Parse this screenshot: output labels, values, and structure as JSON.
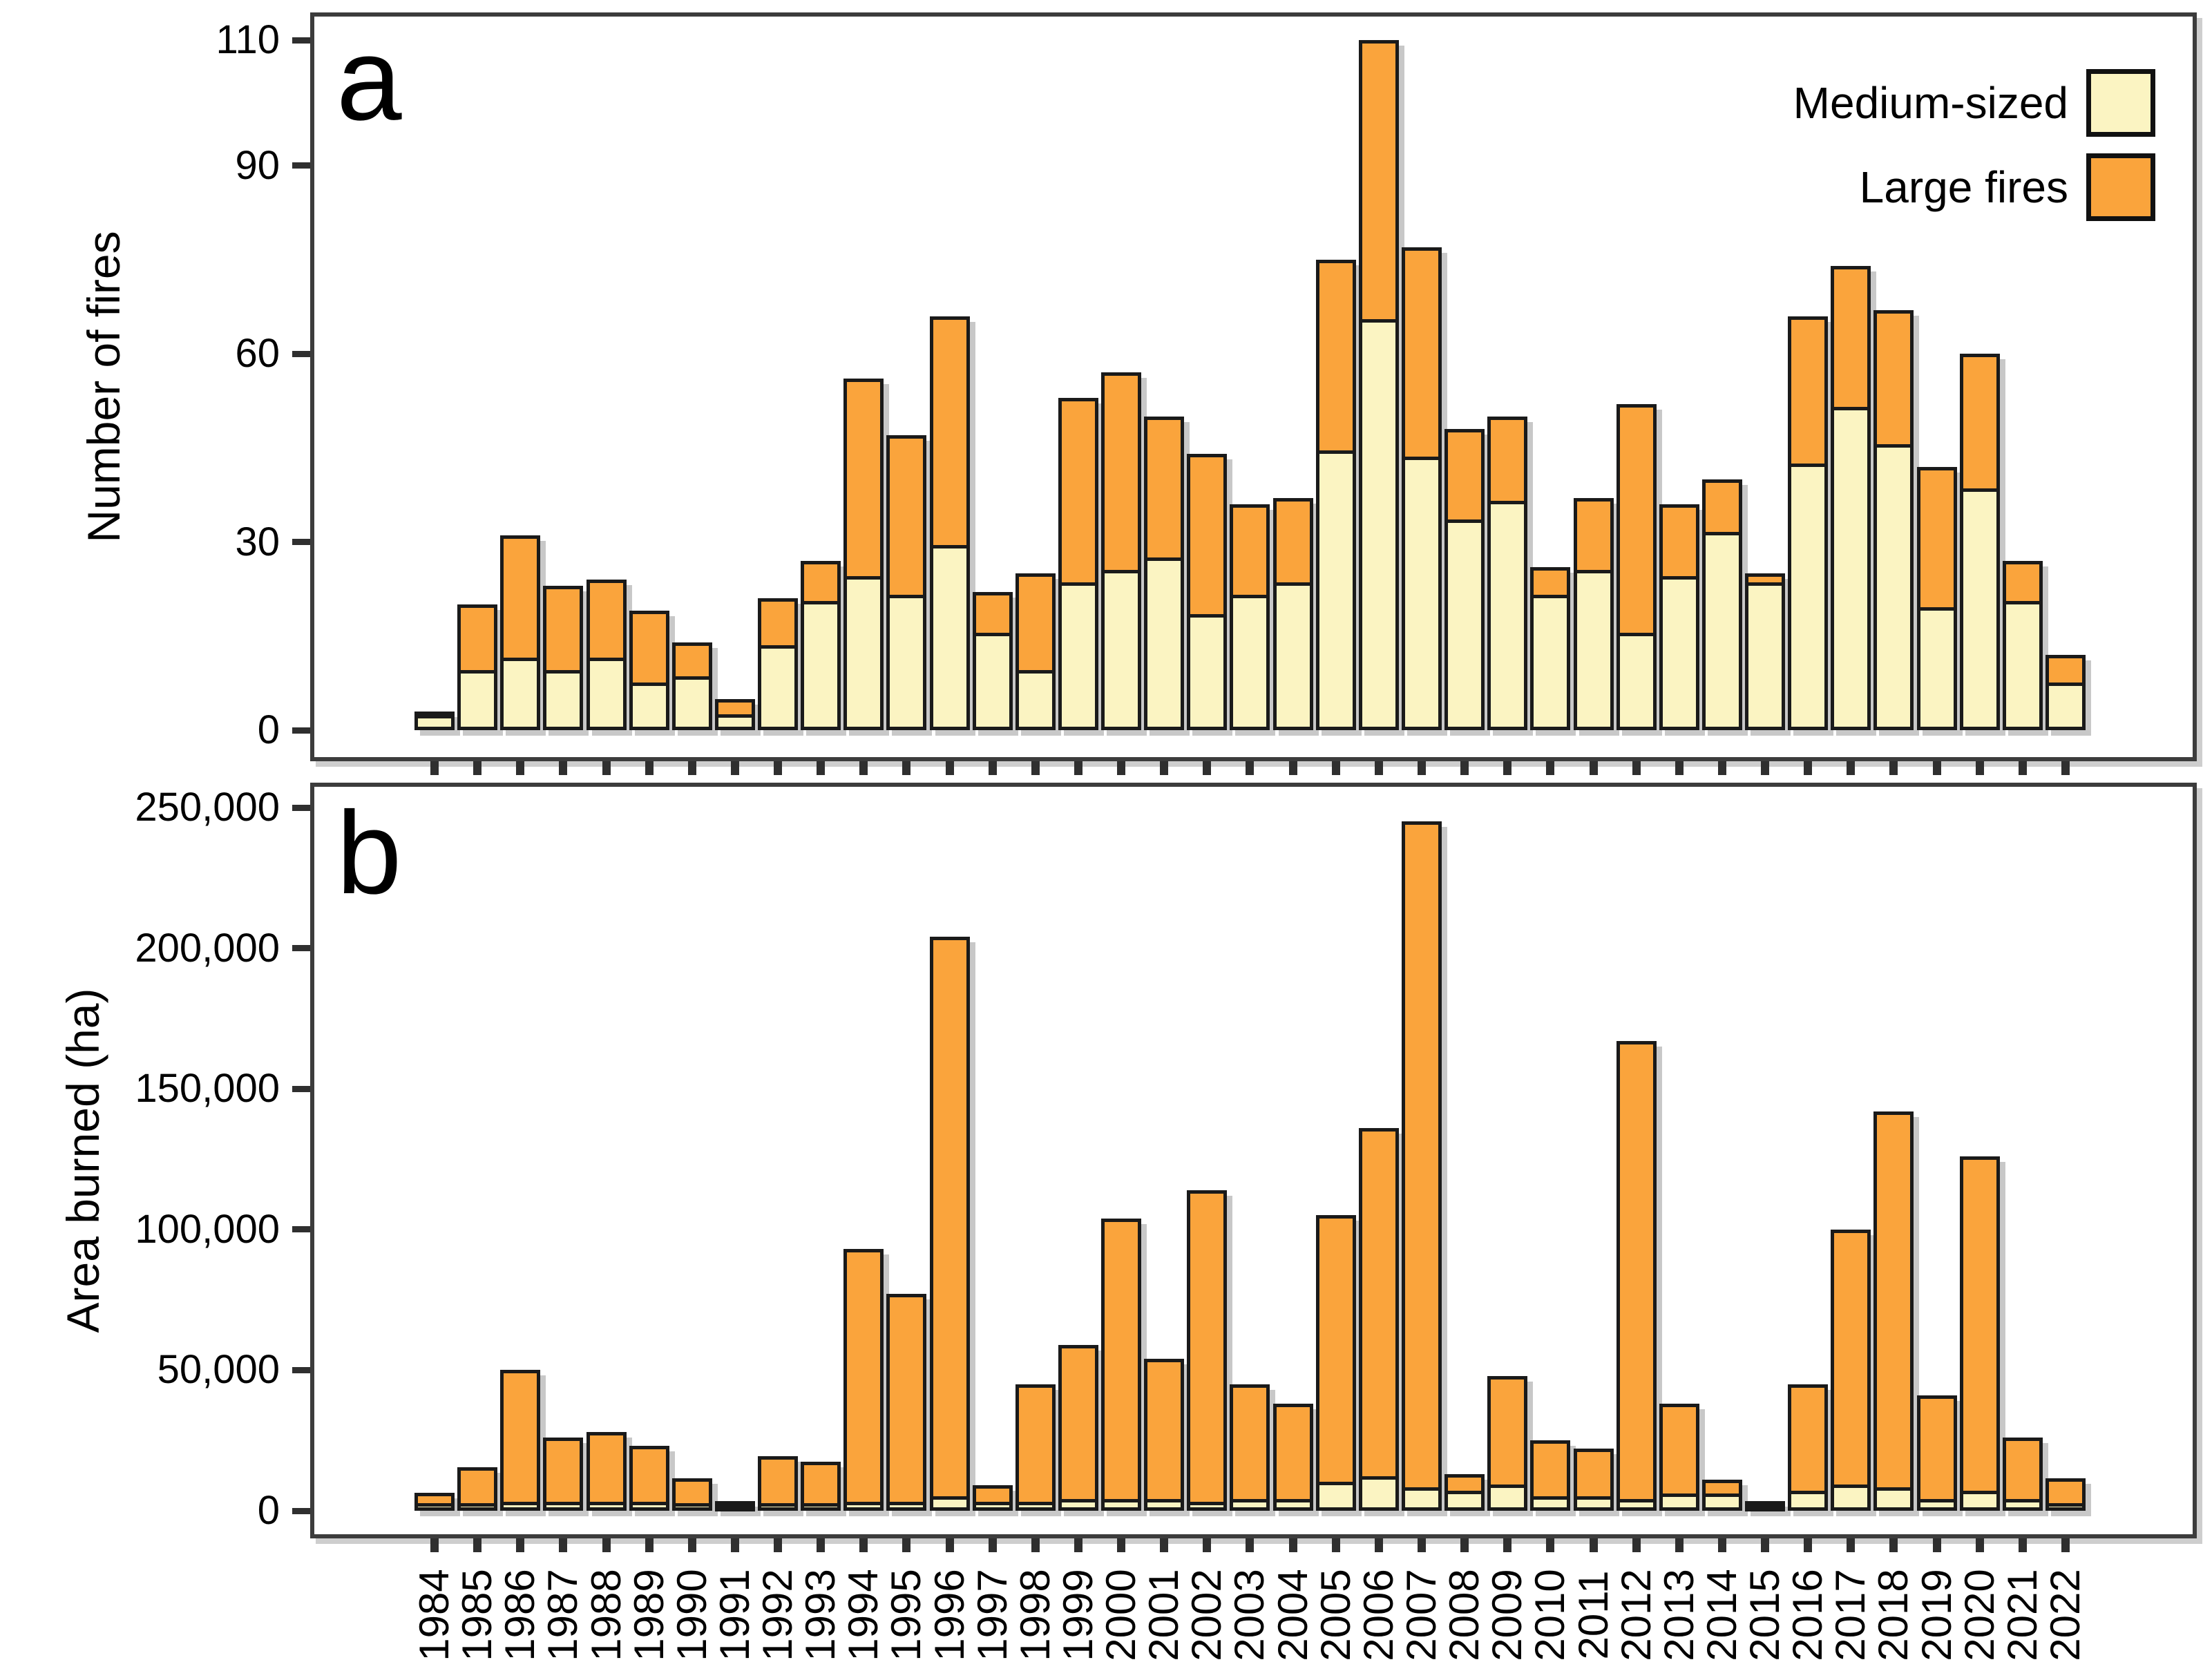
{
  "figure": {
    "panel_a": {
      "letter": "a",
      "y_label": "Number of fires",
      "y_ticks": [
        {
          "v": 0,
          "label": "0"
        },
        {
          "v": 30,
          "label": "30"
        },
        {
          "v": 60,
          "label": "60"
        },
        {
          "v": 90,
          "label": "90"
        },
        {
          "v": 110,
          "label": "110"
        }
      ]
    },
    "panel_b": {
      "letter": "b",
      "y_label": "Area burned (ha)",
      "y_ticks": [
        {
          "v": 0,
          "label": "0"
        },
        {
          "v": 50000,
          "label": "50,000"
        },
        {
          "v": 100000,
          "label": "100,000"
        },
        {
          "v": 150000,
          "label": "150,000"
        },
        {
          "v": 200000,
          "label": "200,000"
        },
        {
          "v": 250000,
          "label": "250,000"
        }
      ]
    },
    "legend": {
      "items": [
        {
          "key": "medium",
          "label": "Medium-sized"
        },
        {
          "key": "large",
          "label": "Large fires"
        }
      ]
    },
    "colors": {
      "medium": "#FBF4C2",
      "large": "#FAA43C",
      "bar_stroke": "#1a1a1a",
      "panel_border": "#3c3c3c",
      "tick": "#2f2f2f"
    }
  },
  "chart_data": [
    {
      "id": "panel_a",
      "type": "bar",
      "stacked": true,
      "ylabel": "Number of fires",
      "xlabel": "",
      "ylim": [
        0,
        110
      ],
      "yticks": [
        0,
        30,
        60,
        90,
        110
      ],
      "grid": false,
      "legend_position": "top-right",
      "categories": [
        1984,
        1985,
        1986,
        1987,
        1988,
        1989,
        1990,
        1991,
        1992,
        1993,
        1994,
        1995,
        1996,
        1997,
        1998,
        1999,
        2000,
        2001,
        2002,
        2003,
        2004,
        2005,
        2006,
        2007,
        2008,
        2009,
        2010,
        2011,
        2012,
        2013,
        2014,
        2015,
        2016,
        2017,
        2018,
        2019,
        2020,
        2021,
        2022
      ],
      "series": [
        {
          "name": "Medium-sized",
          "values": [
            2,
            9,
            11,
            9,
            11,
            7,
            8,
            2,
            13,
            20,
            24,
            21,
            29,
            15,
            9,
            23,
            25,
            27,
            18,
            21,
            23,
            44,
            65,
            43,
            33,
            36,
            21,
            25,
            15,
            24,
            31,
            23,
            42,
            51,
            45,
            19,
            38,
            20,
            7
          ]
        },
        {
          "name": "Large fires",
          "values": [
            1,
            11,
            20,
            14,
            13,
            12,
            6,
            3,
            8,
            7,
            32,
            26,
            37,
            7,
            16,
            30,
            32,
            23,
            26,
            15,
            14,
            31,
            45,
            34,
            15,
            14,
            5,
            12,
            37,
            12,
            9,
            2,
            24,
            23,
            22,
            23,
            22,
            7,
            5
          ]
        }
      ]
    },
    {
      "id": "panel_b",
      "type": "bar",
      "stacked": true,
      "ylabel": "Area burned (ha)",
      "xlabel": "",
      "ylim": [
        0,
        250000
      ],
      "yticks": [
        0,
        50000,
        100000,
        150000,
        200000,
        250000
      ],
      "grid": false,
      "legend_position": "none",
      "categories": [
        1984,
        1985,
        1986,
        1987,
        1988,
        1989,
        1990,
        1991,
        1992,
        1993,
        1994,
        1995,
        1996,
        1997,
        1998,
        1999,
        2000,
        2001,
        2002,
        2003,
        2004,
        2005,
        2006,
        2007,
        2008,
        2009,
        2010,
        2011,
        2012,
        2013,
        2014,
        2015,
        2016,
        2017,
        2018,
        2019,
        2020,
        2021,
        2022
      ],
      "series": [
        {
          "name": "Medium-sized",
          "values": [
            1000,
            1000,
            2000,
            2000,
            2000,
            2000,
            1000,
            1000,
            1000,
            1000,
            2000,
            2000,
            4000,
            2000,
            2000,
            3000,
            3000,
            3000,
            2000,
            3000,
            3000,
            9000,
            11000,
            7000,
            6000,
            8000,
            4000,
            4000,
            3000,
            5000,
            5000,
            2000,
            6000,
            8000,
            7000,
            3000,
            6000,
            3000,
            1000
          ]
        },
        {
          "name": "Large fires",
          "values": [
            5000,
            14000,
            48000,
            24000,
            26000,
            21000,
            10000,
            2000,
            18000,
            16000,
            91000,
            75000,
            200000,
            7000,
            43000,
            56000,
            101000,
            51000,
            112000,
            42000,
            35000,
            96000,
            125000,
            238000,
            7000,
            40000,
            21000,
            18000,
            164000,
            33000,
            6000,
            1000,
            39000,
            92000,
            135000,
            38000,
            120000,
            23000,
            10000
          ]
        }
      ]
    }
  ],
  "x_axis": {
    "tick_labels": [
      "1984",
      "1985",
      "1986",
      "1987",
      "1988",
      "1989",
      "1990",
      "1991",
      "1992",
      "1993",
      "1994",
      "1995",
      "1996",
      "1997",
      "1998",
      "1999",
      "2000",
      "2001",
      "2002",
      "2003",
      "2004",
      "2005",
      "2006",
      "2007",
      "2008",
      "2009",
      "2010",
      "2011",
      "2012",
      "2013",
      "2014",
      "2015",
      "2016",
      "2017",
      "2018",
      "2019",
      "2020",
      "2021",
      "2022"
    ]
  }
}
